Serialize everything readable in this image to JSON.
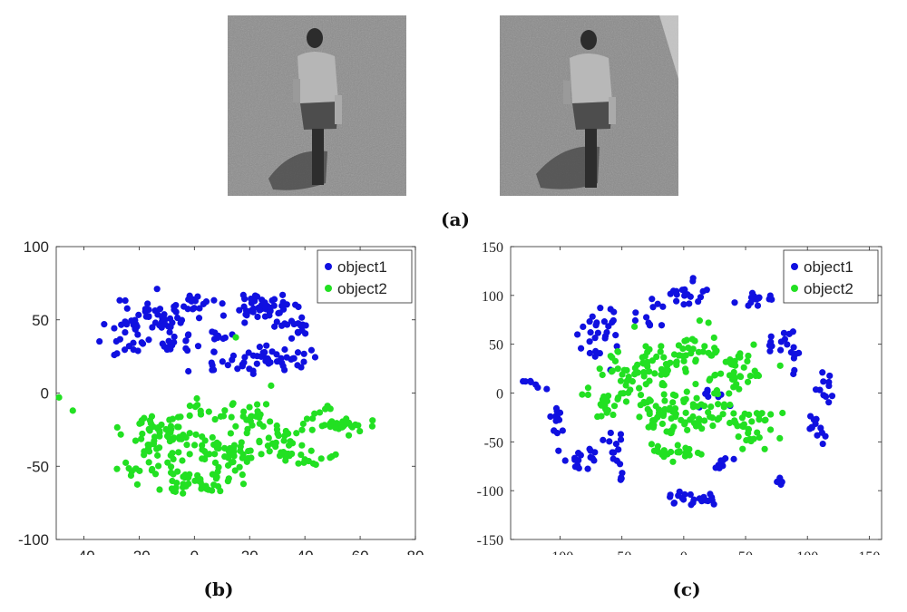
{
  "captions": {
    "a": "(a)",
    "b": "(b)",
    "c": "(c)"
  },
  "colors": {
    "object1": "#1010e0",
    "object2": "#22e022"
  },
  "chart_data": [
    {
      "type": "scatter",
      "title": "",
      "xlabel": "",
      "ylabel": "",
      "xlim": [
        -50,
        80
      ],
      "ylim": [
        -100,
        100
      ],
      "xticks": [
        -40,
        -20,
        0,
        20,
        40,
        60,
        80
      ],
      "yticks": [
        -100,
        -50,
        0,
        50,
        100
      ],
      "legend": "top-right",
      "grid": false,
      "series": [
        {
          "name": "object1",
          "color": "#1010e0",
          "clusters": [
            {
              "cx": -15,
              "cy": 52,
              "sx": 7,
              "sy": 7,
              "n": 55
            },
            {
              "cx": -22,
              "cy": 35,
              "sx": 5,
              "sy": 4,
              "n": 12
            },
            {
              "cx": -6,
              "cy": 32,
              "sx": 6,
              "sy": 4,
              "n": 18
            },
            {
              "cx": 0,
              "cy": 62,
              "sx": 3,
              "sy": 3,
              "n": 12
            },
            {
              "cx": 10,
              "cy": 38,
              "sx": 2.5,
              "sy": 2.5,
              "n": 8
            },
            {
              "cx": 24,
              "cy": 58,
              "sx": 6,
              "sy": 6,
              "n": 50
            },
            {
              "cx": 37,
              "cy": 44,
              "sx": 3,
              "sy": 4,
              "n": 14
            },
            {
              "cx": 30,
              "cy": 25,
              "sx": 8,
              "sy": 4,
              "n": 38
            },
            {
              "cx": 14,
              "cy": 20,
              "sx": 6,
              "sy": 3,
              "n": 16
            }
          ],
          "extra_points": [
            [
              -29,
              26
            ],
            [
              -28,
              27
            ]
          ]
        },
        {
          "name": "object2",
          "color": "#22e022",
          "clusters": [
            {
              "cx": -14,
              "cy": -25,
              "sx": 7,
              "sy": 6,
              "n": 40
            },
            {
              "cx": -17,
              "cy": -48,
              "sx": 5,
              "sy": 6,
              "n": 22
            },
            {
              "cx": -4,
              "cy": -36,
              "sx": 6,
              "sy": 8,
              "n": 30
            },
            {
              "cx": 1,
              "cy": -62,
              "sx": 6,
              "sy": 5,
              "n": 40
            },
            {
              "cx": 12,
              "cy": -42,
              "sx": 7,
              "sy": 8,
              "n": 40
            },
            {
              "cx": 20,
              "cy": -16,
              "sx": 6,
              "sy": 8,
              "n": 30
            },
            {
              "cx": 30,
              "cy": -33,
              "sx": 6,
              "sy": 6,
              "n": 30
            },
            {
              "cx": 40,
              "cy": -44,
              "sx": 4,
              "sy": 3,
              "n": 15
            },
            {
              "cx": 48,
              "cy": -17,
              "sx": 4,
              "sy": 6,
              "n": 15
            },
            {
              "cx": 55,
              "cy": -22,
              "sx": 4,
              "sy": 3,
              "n": 18
            },
            {
              "cx": 0,
              "cy": -13,
              "sx": 4,
              "sy": 3,
              "n": 8
            }
          ],
          "extra_points": [
            [
              -49,
              -3
            ],
            [
              -44,
              -12
            ],
            [
              15,
              38
            ]
          ]
        }
      ]
    },
    {
      "type": "scatter",
      "title": "",
      "xlabel": "",
      "ylabel": "",
      "xlim": [
        -140,
        160
      ],
      "ylim": [
        -150,
        150
      ],
      "xticks": [
        -100,
        -50,
        0,
        50,
        100,
        150
      ],
      "yticks": [
        -150,
        -100,
        -50,
        0,
        50,
        100,
        150
      ],
      "legend": "top-right",
      "grid": false,
      "series": [
        {
          "name": "object1",
          "color": "#1010e0",
          "clusters": [
            {
              "cx": -72,
              "cy": 60,
              "sx": 12,
              "sy": 14,
              "n": 28
            },
            {
              "cx": -122,
              "cy": 8,
              "sx": 5,
              "sy": 3,
              "n": 6
            },
            {
              "cx": -100,
              "cy": -30,
              "sx": 5,
              "sy": 14,
              "n": 14
            },
            {
              "cx": -78,
              "cy": -68,
              "sx": 10,
              "sy": 8,
              "n": 20
            },
            {
              "cx": -55,
              "cy": -48,
              "sx": 5,
              "sy": 5,
              "n": 8
            },
            {
              "cx": -28,
              "cy": 88,
              "sx": 7,
              "sy": 12,
              "n": 12
            },
            {
              "cx": 2,
              "cy": 102,
              "sx": 8,
              "sy": 6,
              "n": 18
            },
            {
              "cx": 2,
              "cy": -110,
              "sx": 12,
              "sy": 6,
              "n": 22
            },
            {
              "cx": 30,
              "cy": -72,
              "sx": 4,
              "sy": 5,
              "n": 8
            },
            {
              "cx": 55,
              "cy": 98,
              "sx": 8,
              "sy": 5,
              "n": 14
            },
            {
              "cx": 72,
              "cy": 55,
              "sx": 8,
              "sy": 6,
              "n": 10
            },
            {
              "cx": 88,
              "cy": 38,
              "sx": 3,
              "sy": 10,
              "n": 10
            },
            {
              "cx": 112,
              "cy": 8,
              "sx": 5,
              "sy": 8,
              "n": 10
            },
            {
              "cx": 108,
              "cy": -35,
              "sx": 4,
              "sy": 8,
              "n": 12
            },
            {
              "cx": 78,
              "cy": -93,
              "sx": 3,
              "sy": 3,
              "n": 4
            },
            {
              "cx": -48,
              "cy": -88,
              "sx": 4,
              "sy": 4,
              "n": 4
            },
            {
              "cx": 20,
              "cy": 0,
              "sx": 10,
              "sy": 10,
              "n": 8
            }
          ],
          "extra_points": [
            [
              -130,
              12
            ],
            [
              120,
              -3
            ]
          ]
        },
        {
          "name": "object2",
          "color": "#22e022",
          "clusters": [
            {
              "cx": -50,
              "cy": 10,
              "sx": 12,
              "sy": 18,
              "n": 50
            },
            {
              "cx": -20,
              "cy": 28,
              "sx": 10,
              "sy": 12,
              "n": 35
            },
            {
              "cx": 8,
              "cy": 40,
              "sx": 10,
              "sy": 10,
              "n": 30
            },
            {
              "cx": 42,
              "cy": 20,
              "sx": 12,
              "sy": 14,
              "n": 45
            },
            {
              "cx": 55,
              "cy": -35,
              "sx": 10,
              "sy": 10,
              "n": 35
            },
            {
              "cx": 12,
              "cy": -20,
              "sx": 12,
              "sy": 12,
              "n": 40
            },
            {
              "cx": -18,
              "cy": -20,
              "sx": 10,
              "sy": 12,
              "n": 35
            },
            {
              "cx": -5,
              "cy": -60,
              "sx": 12,
              "sy": 5,
              "n": 25
            },
            {
              "cx": -62,
              "cy": -10,
              "sx": 5,
              "sy": 8,
              "n": 10
            }
          ],
          "extra_points": [
            [
              20,
              72
            ],
            [
              78,
              28
            ]
          ]
        }
      ]
    }
  ]
}
